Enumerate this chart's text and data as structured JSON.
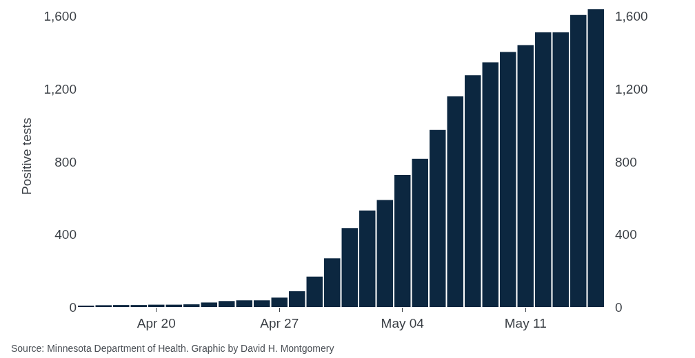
{
  "chart_data": {
    "type": "bar",
    "ylabel": "Positive tests",
    "categories": [
      null,
      null,
      null,
      null,
      "Apr 20",
      null,
      null,
      null,
      null,
      null,
      null,
      "Apr 27",
      null,
      null,
      null,
      null,
      null,
      null,
      "May 04",
      null,
      null,
      null,
      null,
      null,
      null,
      "May 11",
      null,
      null,
      null,
      null
    ],
    "values": [
      8,
      10,
      11,
      11,
      13,
      13,
      15,
      25,
      33,
      37,
      37,
      52,
      87,
      168,
      268,
      435,
      532,
      589,
      728,
      816,
      975,
      1160,
      1276,
      1347,
      1404,
      1442,
      1512,
      1512,
      1608,
      1640
    ],
    "color": "#0c2740",
    "ylim": [
      0,
      1660
    ],
    "yticks": [
      0,
      400,
      800,
      {
        "value": 1200,
        "label": "1,200"
      },
      {
        "value": 1600,
        "label": "1,600"
      }
    ],
    "y2lim": [
      0,
      1660
    ],
    "y2ticks": [
      0,
      400,
      800,
      {
        "value": 1200,
        "label": "1,200"
      },
      {
        "value": 1600,
        "label": "1,600"
      }
    ],
    "grid": false,
    "annotations": [
      "Source: Minnesota Department of Health. Graphic by David H. Montgomery"
    ]
  }
}
